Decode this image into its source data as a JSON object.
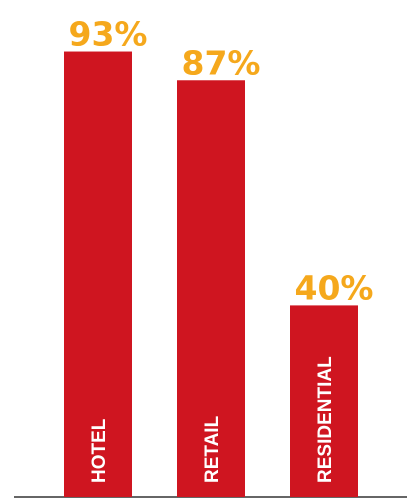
{
  "chart_data": {
    "type": "bar",
    "categories": [
      "HOTEL",
      "RETAIL",
      "RESIDENTIAL"
    ],
    "values": [
      93,
      87,
      40
    ],
    "value_labels": [
      "93%",
      "87%",
      "40%"
    ],
    "ylim": [
      0,
      100
    ],
    "grid": false,
    "colors": {
      "bar": "#cf1520",
      "value_label": "#f5a81c",
      "category_label": "#ffffff",
      "baseline": "#333333"
    }
  }
}
